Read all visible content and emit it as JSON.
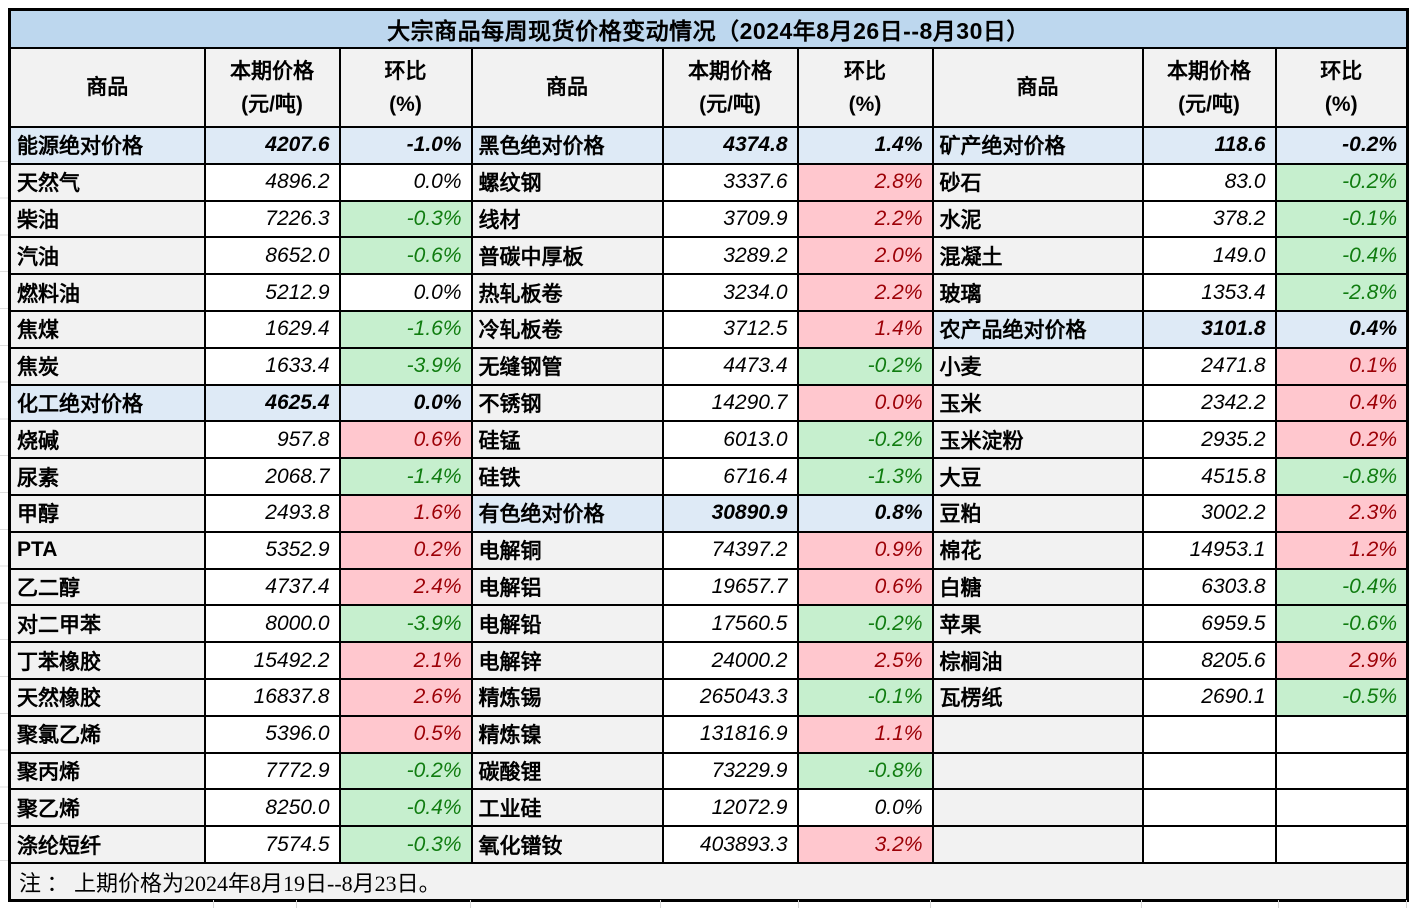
{
  "title": "大宗商品每周现货价格变动情况（2024年8月26日--8月30日）",
  "note": "注 ： 上期价格为2024年8月19日--8月23日。",
  "header": {
    "commodity": "商品",
    "price_line1": "本期价格",
    "price_line2": "(元/吨)",
    "pct_line1": "环比",
    "pct_line2": "(%)"
  },
  "colors": {
    "title_bg": "#BDD7EE",
    "header_bg": "#F2F2F2",
    "name_bg": "#F2F2F2",
    "section_bg": "#DEEAF6",
    "up_bg": "#FFC7CE",
    "up_text": "#9C0006",
    "down_bg": "#C6EFCE",
    "down_text": "#107C10"
  },
  "groups": [
    {
      "rows": [
        {
          "name": "能源绝对价格",
          "price": "4207.6",
          "pct": "-1.0%",
          "kind": "section"
        },
        {
          "name": "天然气",
          "price": "4896.2",
          "pct": "0.0%",
          "kind": "item",
          "trend": "flat"
        },
        {
          "name": "柴油",
          "price": "7226.3",
          "pct": "-0.3%",
          "kind": "item",
          "trend": "down"
        },
        {
          "name": "汽油",
          "price": "8652.0",
          "pct": "-0.6%",
          "kind": "item",
          "trend": "down"
        },
        {
          "name": "燃料油",
          "price": "5212.9",
          "pct": "0.0%",
          "kind": "item",
          "trend": "flat"
        },
        {
          "name": "焦煤",
          "price": "1629.4",
          "pct": "-1.6%",
          "kind": "item",
          "trend": "down"
        },
        {
          "name": "焦炭",
          "price": "1633.4",
          "pct": "-3.9%",
          "kind": "item",
          "trend": "down"
        },
        {
          "name": "化工绝对价格",
          "price": "4625.4",
          "pct": "0.0%",
          "kind": "section"
        },
        {
          "name": "烧碱",
          "price": "957.8",
          "pct": "0.6%",
          "kind": "item",
          "trend": "up"
        },
        {
          "name": "尿素",
          "price": "2068.7",
          "pct": "-1.4%",
          "kind": "item",
          "trend": "down"
        },
        {
          "name": "甲醇",
          "price": "2493.8",
          "pct": "1.6%",
          "kind": "item",
          "trend": "up"
        },
        {
          "name": "PTA",
          "price": "5352.9",
          "pct": "0.2%",
          "kind": "item",
          "trend": "up"
        },
        {
          "name": "乙二醇",
          "price": "4737.4",
          "pct": "2.4%",
          "kind": "item",
          "trend": "up"
        },
        {
          "name": "对二甲苯",
          "price": "8000.0",
          "pct": "-3.9%",
          "kind": "item",
          "trend": "down"
        },
        {
          "name": "丁苯橡胶",
          "price": "15492.2",
          "pct": "2.1%",
          "kind": "item",
          "trend": "up"
        },
        {
          "name": "天然橡胶",
          "price": "16837.8",
          "pct": "2.6%",
          "kind": "item",
          "trend": "up"
        },
        {
          "name": "聚氯乙烯",
          "price": "5396.0",
          "pct": "0.5%",
          "kind": "item",
          "trend": "up"
        },
        {
          "name": "聚丙烯",
          "price": "7772.9",
          "pct": "-0.2%",
          "kind": "item",
          "trend": "down"
        },
        {
          "name": "聚乙烯",
          "price": "8250.0",
          "pct": "-0.4%",
          "kind": "item",
          "trend": "down"
        },
        {
          "name": "涤纶短纤",
          "price": "7574.5",
          "pct": "-0.3%",
          "kind": "item",
          "trend": "down"
        }
      ]
    },
    {
      "rows": [
        {
          "name": "黑色绝对价格",
          "price": "4374.8",
          "pct": "1.4%",
          "kind": "section"
        },
        {
          "name": "螺纹钢",
          "price": "3337.6",
          "pct": "2.8%",
          "kind": "item",
          "trend": "up"
        },
        {
          "name": "线材",
          "price": "3709.9",
          "pct": "2.2%",
          "kind": "item",
          "trend": "up"
        },
        {
          "name": "普碳中厚板",
          "price": "3289.2",
          "pct": "2.0%",
          "kind": "item",
          "trend": "up"
        },
        {
          "name": "热轧板卷",
          "price": "3234.0",
          "pct": "2.2%",
          "kind": "item",
          "trend": "up"
        },
        {
          "name": "冷轧板卷",
          "price": "3712.5",
          "pct": "1.4%",
          "kind": "item",
          "trend": "up"
        },
        {
          "name": "无缝钢管",
          "price": "4473.4",
          "pct": "-0.2%",
          "kind": "item",
          "trend": "down"
        },
        {
          "name": "不锈钢",
          "price": "14290.7",
          "pct": "0.0%",
          "kind": "item",
          "trend": "up"
        },
        {
          "name": "硅锰",
          "price": "6013.0",
          "pct": "-0.2%",
          "kind": "item",
          "trend": "down"
        },
        {
          "name": "硅铁",
          "price": "6716.4",
          "pct": "-1.3%",
          "kind": "item",
          "trend": "down"
        },
        {
          "name": "有色绝对价格",
          "price": "30890.9",
          "pct": "0.8%",
          "kind": "section"
        },
        {
          "name": "电解铜",
          "price": "74397.2",
          "pct": "0.9%",
          "kind": "item",
          "trend": "up"
        },
        {
          "name": "电解铝",
          "price": "19657.7",
          "pct": "0.6%",
          "kind": "item",
          "trend": "up"
        },
        {
          "name": "电解铅",
          "price": "17560.5",
          "pct": "-0.2%",
          "kind": "item",
          "trend": "down"
        },
        {
          "name": "电解锌",
          "price": "24000.2",
          "pct": "2.5%",
          "kind": "item",
          "trend": "up"
        },
        {
          "name": "精炼锡",
          "price": "265043.3",
          "pct": "-0.1%",
          "kind": "item",
          "trend": "down"
        },
        {
          "name": "精炼镍",
          "price": "131816.9",
          "pct": "1.1%",
          "kind": "item",
          "trend": "up"
        },
        {
          "name": "碳酸锂",
          "price": "73229.9",
          "pct": "-0.8%",
          "kind": "item",
          "trend": "down"
        },
        {
          "name": "工业硅",
          "price": "12072.9",
          "pct": "0.0%",
          "kind": "item",
          "trend": "flat"
        },
        {
          "name": "氧化镨钕",
          "price": "403893.3",
          "pct": "3.2%",
          "kind": "item",
          "trend": "up"
        }
      ]
    },
    {
      "rows": [
        {
          "name": "矿产绝对价格",
          "price": "118.6",
          "pct": "-0.2%",
          "kind": "section"
        },
        {
          "name": "砂石",
          "price": "83.0",
          "pct": "-0.2%",
          "kind": "item",
          "trend": "down"
        },
        {
          "name": "水泥",
          "price": "378.2",
          "pct": "-0.1%",
          "kind": "item",
          "trend": "down"
        },
        {
          "name": "混凝土",
          "price": "149.0",
          "pct": "-0.4%",
          "kind": "item",
          "trend": "down"
        },
        {
          "name": "玻璃",
          "price": "1353.4",
          "pct": "-2.8%",
          "kind": "item",
          "trend": "down"
        },
        {
          "name": "农产品绝对价格",
          "price": "3101.8",
          "pct": "0.4%",
          "kind": "section"
        },
        {
          "name": "小麦",
          "price": "2471.8",
          "pct": "0.1%",
          "kind": "item",
          "trend": "up"
        },
        {
          "name": "玉米",
          "price": "2342.2",
          "pct": "0.4%",
          "kind": "item",
          "trend": "up"
        },
        {
          "name": "玉米淀粉",
          "price": "2935.2",
          "pct": "0.2%",
          "kind": "item",
          "trend": "up"
        },
        {
          "name": "大豆",
          "price": "4515.8",
          "pct": "-0.8%",
          "kind": "item",
          "trend": "down"
        },
        {
          "name": "豆粕",
          "price": "3002.2",
          "pct": "2.3%",
          "kind": "item",
          "trend": "up"
        },
        {
          "name": "棉花",
          "price": "14953.1",
          "pct": "1.2%",
          "kind": "item",
          "trend": "up"
        },
        {
          "name": "白糖",
          "price": "6303.8",
          "pct": "-0.4%",
          "kind": "item",
          "trend": "down"
        },
        {
          "name": "苹果",
          "price": "6959.5",
          "pct": "-0.6%",
          "kind": "item",
          "trend": "down"
        },
        {
          "name": "棕榈油",
          "price": "8205.6",
          "pct": "2.9%",
          "kind": "item",
          "trend": "up"
        },
        {
          "name": "瓦楞纸",
          "price": "2690.1",
          "pct": "-0.5%",
          "kind": "item",
          "trend": "down"
        },
        {
          "name": "",
          "price": "",
          "pct": "",
          "kind": "empty"
        },
        {
          "name": "",
          "price": "",
          "pct": "",
          "kind": "empty"
        },
        {
          "name": "",
          "price": "",
          "pct": "",
          "kind": "empty"
        },
        {
          "name": "",
          "price": "",
          "pct": "",
          "kind": "empty"
        }
      ]
    }
  ]
}
